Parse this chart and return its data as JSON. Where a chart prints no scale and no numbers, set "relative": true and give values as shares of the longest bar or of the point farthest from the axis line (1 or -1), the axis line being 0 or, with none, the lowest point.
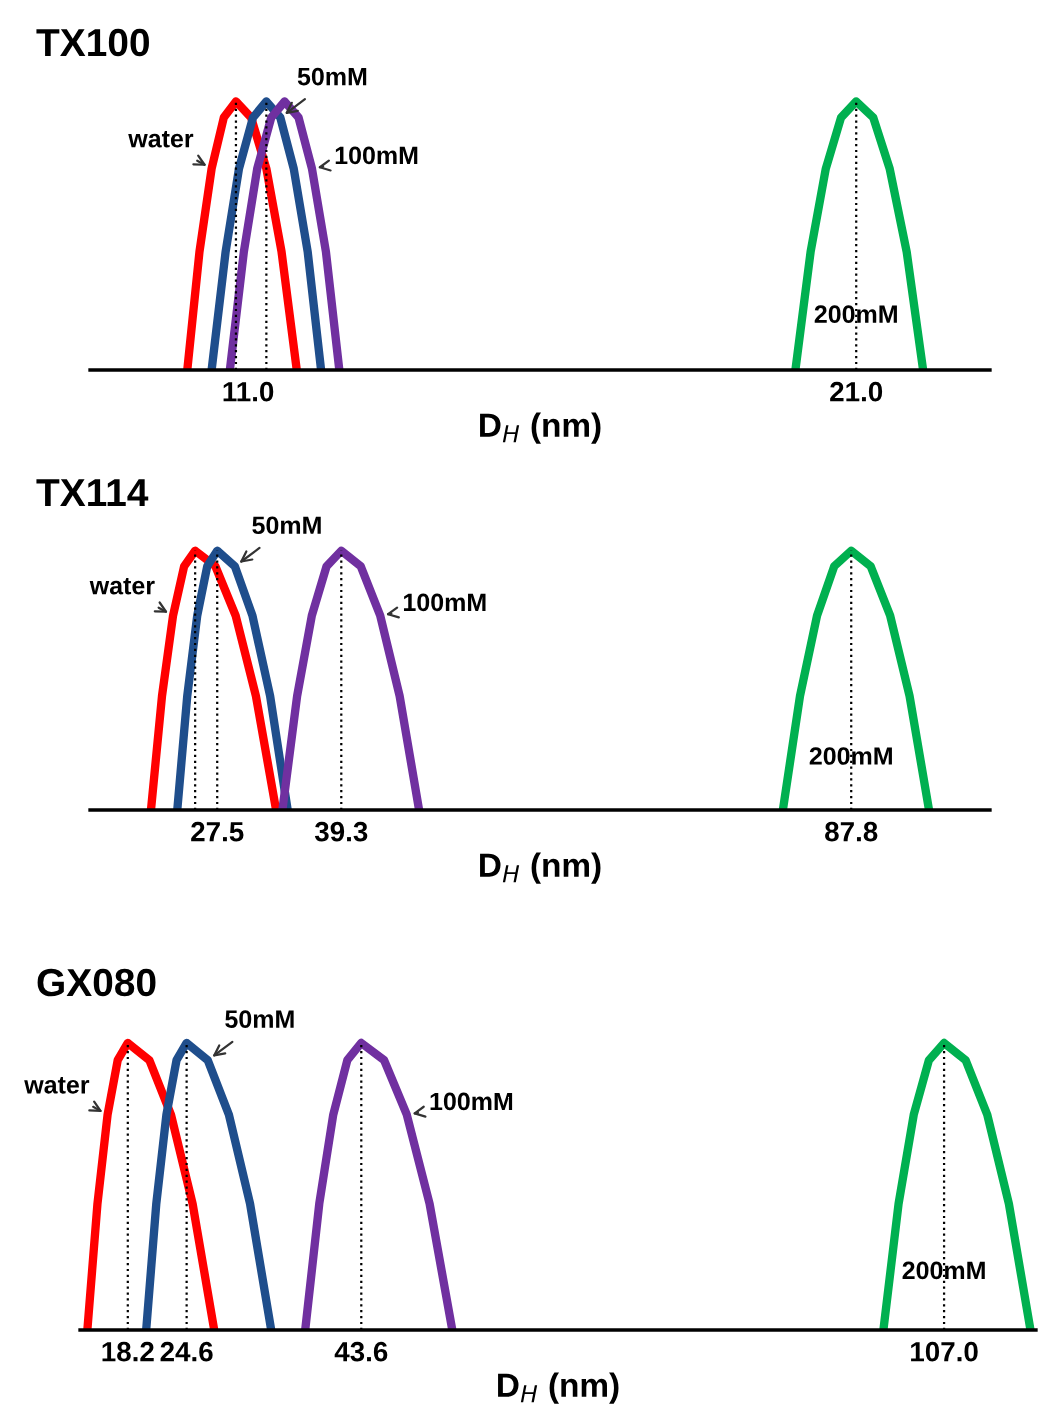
{
  "chart_data": [
    {
      "type": "line",
      "title": "TX100",
      "xlabel": "D$_{H}$ (nm)",
      "relative": true,
      "xlim": [
        8.4,
        23.2
      ],
      "xticks": [
        {
          "value": 11.0,
          "label": "11.0"
        },
        {
          "value": 21.0,
          "label": "21.0"
        }
      ],
      "ref_lines": [
        {
          "axis": "x",
          "value": 10.8,
          "color": "#000000",
          "line_style": "dotted"
        },
        {
          "axis": "x",
          "value": 11.3,
          "color": "#000000",
          "line_style": "dotted"
        },
        {
          "axis": "x",
          "value": 21.0,
          "color": "#000000",
          "line_style": "dotted"
        }
      ],
      "series": [
        {
          "name": "water",
          "color": "#ff0000",
          "x": [
            10.0,
            10.2,
            10.4,
            10.6,
            10.8,
            11.05,
            11.3,
            11.55,
            11.8
          ],
          "values": [
            0,
            0.44,
            0.75,
            0.94,
            1,
            0.94,
            0.75,
            0.44,
            0
          ]
        },
        {
          "name": "50mM",
          "color": "#1f4e8c",
          "x": [
            10.4,
            10.63,
            10.85,
            11.08,
            11.3,
            11.53,
            11.75,
            11.98,
            12.2
          ],
          "values": [
            0,
            0.44,
            0.75,
            0.94,
            1,
            0.94,
            0.75,
            0.44,
            0
          ]
        },
        {
          "name": "100mM",
          "color": "#7030a0",
          "x": [
            10.7,
            10.93,
            11.15,
            11.38,
            11.6,
            11.83,
            12.05,
            12.28,
            12.5
          ],
          "values": [
            0,
            0.44,
            0.75,
            0.94,
            1,
            0.94,
            0.75,
            0.44,
            0
          ]
        },
        {
          "name": "200mM",
          "color": "#00b050",
          "x": [
            20.0,
            20.25,
            20.5,
            20.75,
            21.0,
            21.28,
            21.55,
            21.83,
            22.1
          ],
          "values": [
            0,
            0.44,
            0.75,
            0.94,
            1,
            0.94,
            0.75,
            0.44,
            0
          ]
        }
      ]
    },
    {
      "type": "line",
      "title": "TX114",
      "xlabel": "D$_{H}$ (nm)",
      "relative": true,
      "xlim": [
        15.4,
        101.0
      ],
      "xticks": [
        {
          "value": 27.5,
          "label": "27.5"
        },
        {
          "value": 39.3,
          "label": "39.3"
        },
        {
          "value": 87.8,
          "label": "87.8"
        }
      ],
      "ref_lines": [
        {
          "axis": "x",
          "value": 25.4,
          "color": "#000000",
          "line_style": "dotted"
        },
        {
          "axis": "x",
          "value": 27.5,
          "color": "#000000",
          "line_style": "dotted"
        },
        {
          "axis": "x",
          "value": 39.3,
          "color": "#000000",
          "line_style": "dotted"
        },
        {
          "axis": "x",
          "value": 87.8,
          "color": "#000000",
          "line_style": "dotted"
        }
      ],
      "series": [
        {
          "name": "water",
          "color": "#ff0000",
          "x": [
            21.2,
            22.25,
            23.3,
            24.35,
            25.4,
            27.33,
            29.25,
            31.18,
            33.1
          ],
          "values": [
            0,
            0.44,
            0.75,
            0.94,
            1,
            0.94,
            0.75,
            0.44,
            0
          ]
        },
        {
          "name": "50mM",
          "color": "#1f4e8c",
          "x": [
            23.7,
            24.65,
            25.6,
            26.55,
            27.5,
            29.18,
            30.85,
            32.53,
            34.2
          ],
          "values": [
            0,
            0.44,
            0.75,
            0.94,
            1,
            0.94,
            0.75,
            0.44,
            0
          ]
        },
        {
          "name": "100mM",
          "color": "#7030a0",
          "x": [
            33.7,
            35.1,
            36.5,
            37.9,
            39.3,
            41.15,
            43.0,
            44.85,
            46.7
          ],
          "values": [
            0,
            0.44,
            0.75,
            0.94,
            1,
            0.94,
            0.75,
            0.44,
            0
          ]
        },
        {
          "name": "200mM",
          "color": "#00b050",
          "x": [
            81.3,
            82.93,
            84.55,
            86.18,
            87.8,
            89.65,
            91.5,
            93.35,
            95.2
          ],
          "values": [
            0,
            0.44,
            0.75,
            0.94,
            1,
            0.94,
            0.75,
            0.44,
            0
          ]
        }
      ]
    },
    {
      "type": "line",
      "title": "GX080",
      "xlabel": "D$_{H}$ (nm)",
      "relative": true,
      "xlim": [
        13.0,
        117.0
      ],
      "xticks": [
        {
          "value": 18.2,
          "label": "18.2"
        },
        {
          "value": 24.6,
          "label": "24.6"
        },
        {
          "value": 43.6,
          "label": "43.6"
        },
        {
          "value": 107.0,
          "label": "107.0"
        }
      ],
      "ref_lines": [
        {
          "axis": "x",
          "value": 18.2,
          "color": "#000000",
          "line_style": "dotted"
        },
        {
          "axis": "x",
          "value": 24.6,
          "color": "#000000",
          "line_style": "dotted"
        },
        {
          "axis": "x",
          "value": 43.6,
          "color": "#000000",
          "line_style": "dotted"
        },
        {
          "axis": "x",
          "value": 107.0,
          "color": "#000000",
          "line_style": "dotted"
        }
      ],
      "series": [
        {
          "name": "water",
          "color": "#ff0000",
          "x": [
            13.8,
            14.9,
            16.0,
            17.1,
            18.2,
            20.55,
            22.9,
            25.25,
            27.6
          ],
          "values": [
            0,
            0.44,
            0.75,
            0.94,
            1,
            0.94,
            0.75,
            0.44,
            0
          ]
        },
        {
          "name": "50mM",
          "color": "#1f4e8c",
          "x": [
            20.2,
            21.3,
            22.4,
            23.5,
            24.6,
            26.9,
            29.2,
            31.5,
            33.8
          ],
          "values": [
            0,
            0.44,
            0.75,
            0.94,
            1,
            0.94,
            0.75,
            0.44,
            0
          ]
        },
        {
          "name": "100mM",
          "color": "#7030a0",
          "x": [
            37.5,
            39.03,
            40.55,
            42.08,
            43.6,
            46.08,
            48.55,
            51.03,
            53.5
          ],
          "values": [
            0,
            0.44,
            0.75,
            0.94,
            1,
            0.94,
            0.75,
            0.44,
            0
          ]
        },
        {
          "name": "200mM",
          "color": "#00b050",
          "x": [
            100.4,
            102.05,
            103.7,
            105.35,
            107.0,
            109.35,
            111.7,
            114.05,
            116.4
          ],
          "values": [
            0,
            0.44,
            0.75,
            0.94,
            1,
            0.94,
            0.75,
            0.44,
            0
          ]
        }
      ]
    }
  ]
}
